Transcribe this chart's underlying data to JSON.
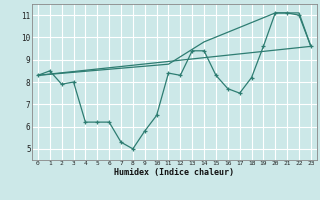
{
  "xlabel": "Humidex (Indice chaleur)",
  "background_color": "#cce8e8",
  "grid_color": "#ffffff",
  "line_color": "#2e7d72",
  "xlim": [
    -0.5,
    23.5
  ],
  "ylim": [
    4.5,
    11.5
  ],
  "xticks": [
    0,
    1,
    2,
    3,
    4,
    5,
    6,
    7,
    8,
    9,
    10,
    11,
    12,
    13,
    14,
    15,
    16,
    17,
    18,
    19,
    20,
    21,
    22,
    23
  ],
  "yticks": [
    5,
    6,
    7,
    8,
    9,
    10,
    11
  ],
  "line1_x": [
    0,
    1,
    2,
    3,
    4,
    5,
    6,
    7,
    8,
    9,
    10,
    11,
    12,
    13,
    14,
    15,
    16,
    17,
    18,
    19,
    20,
    21,
    22,
    23
  ],
  "line1_y": [
    8.3,
    8.5,
    7.9,
    8.0,
    6.2,
    6.2,
    6.2,
    5.3,
    5.0,
    5.8,
    6.5,
    8.4,
    8.3,
    9.4,
    9.4,
    8.3,
    7.7,
    7.5,
    8.2,
    9.6,
    11.1,
    11.1,
    11.0,
    9.6
  ],
  "line2_x": [
    0,
    23
  ],
  "line2_y": [
    8.3,
    9.6
  ],
  "line3_x": [
    0,
    11,
    14,
    20,
    22,
    23
  ],
  "line3_y": [
    8.3,
    8.8,
    9.8,
    11.1,
    11.1,
    9.6
  ]
}
